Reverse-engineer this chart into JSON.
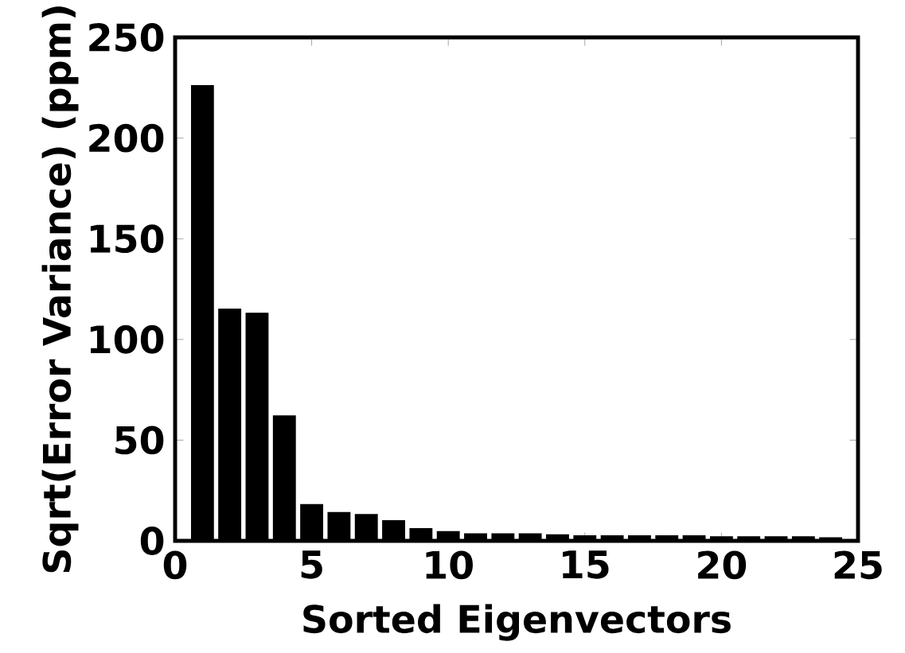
{
  "chart_data": {
    "type": "bar",
    "xlabel": "Sorted Eigenvectors",
    "ylabel": "Sqrt(Error Variance) (ppm)",
    "x": [
      1,
      2,
      3,
      4,
      5,
      6,
      7,
      8,
      9,
      10,
      11,
      12,
      13,
      14,
      15,
      16,
      17,
      18,
      19,
      20,
      21,
      22,
      23,
      24
    ],
    "values": [
      226,
      115,
      113,
      62,
      18,
      14,
      13,
      10,
      6,
      4.5,
      3.5,
      3.5,
      3.5,
      3,
      2.5,
      2.5,
      2.5,
      2.5,
      2.5,
      2,
      2,
      2,
      2,
      1.5
    ],
    "color": "#000000",
    "xlim": [
      0,
      25
    ],
    "xticks": [
      0,
      5,
      10,
      15,
      20,
      25
    ],
    "ylim": [
      0,
      250
    ],
    "yticks": [
      0,
      50,
      100,
      150,
      200,
      250
    ]
  }
}
